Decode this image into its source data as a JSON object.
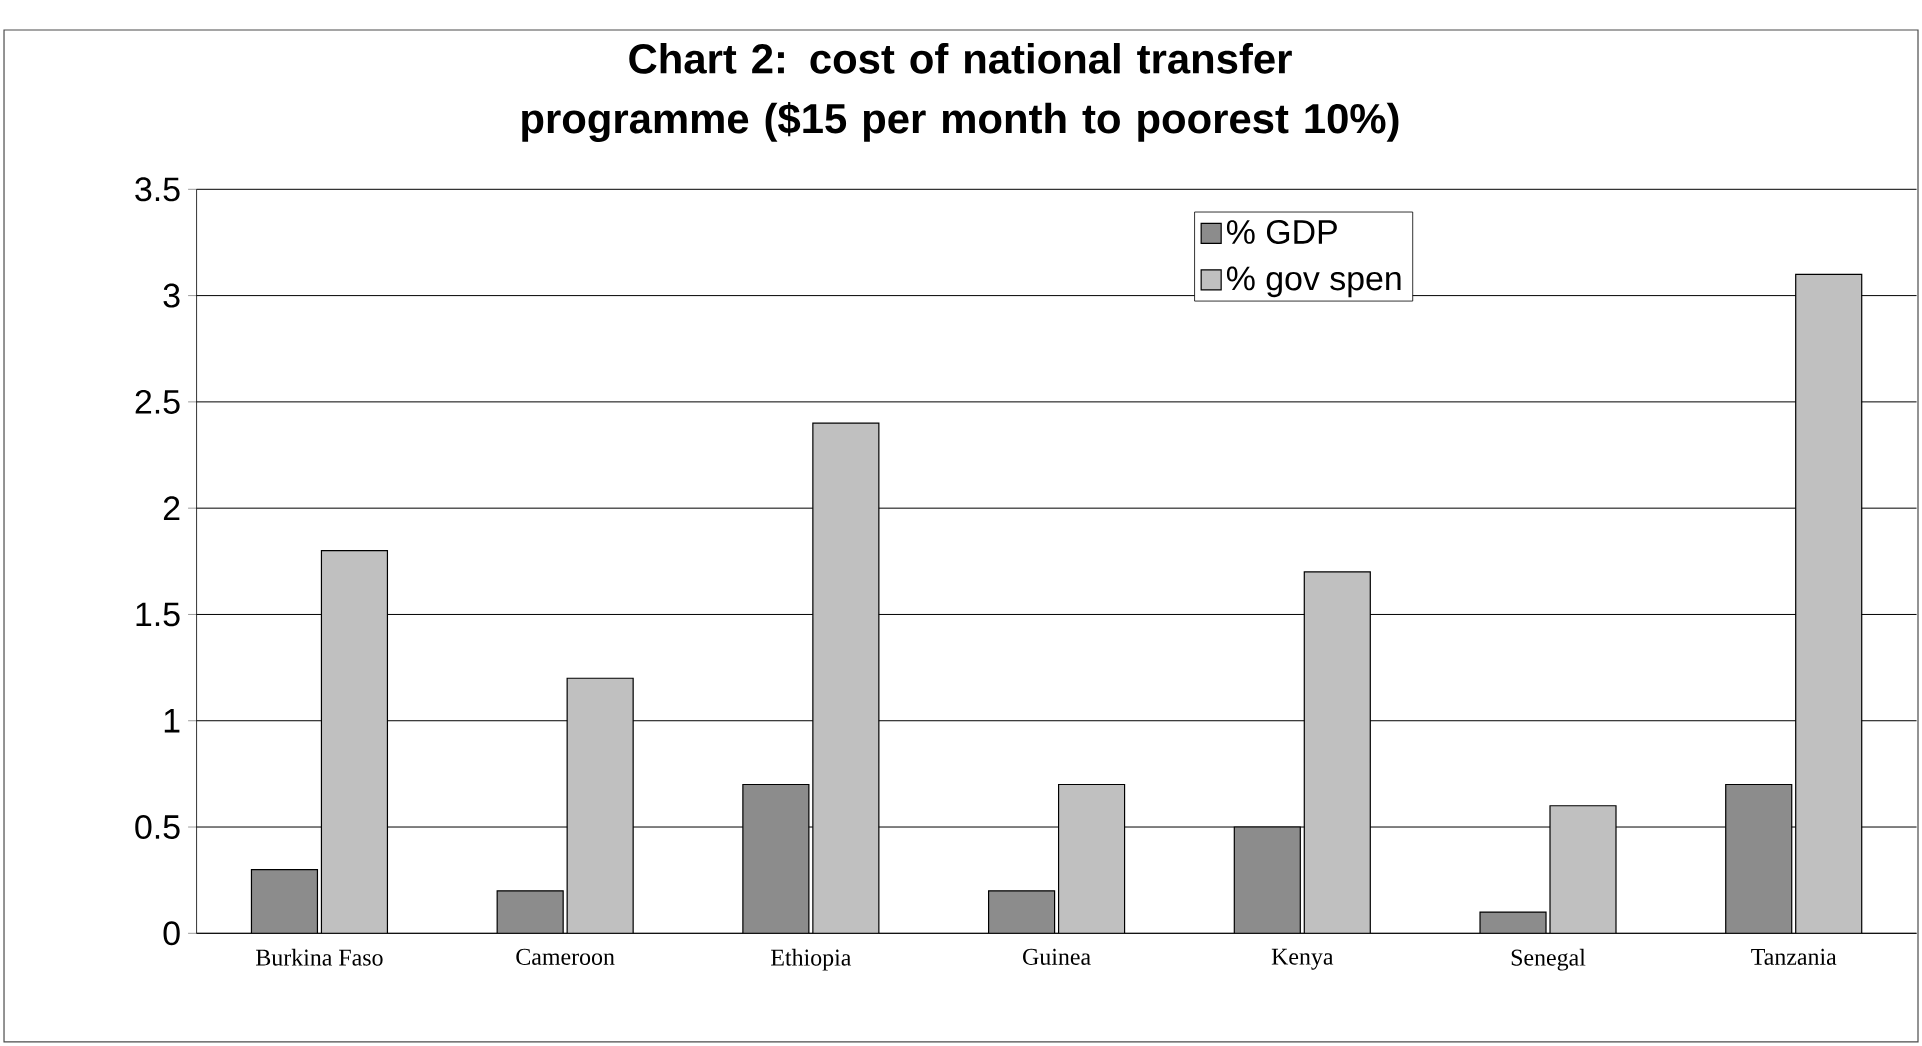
{
  "chart_data": {
    "type": "bar",
    "title": "Chart 2: cost of national transfer programme ($15 per month to poorest 10%)",
    "categories": [
      "Burkina Faso",
      "Cameroon",
      "Ethiopia",
      "Guinea",
      "Kenya",
      "Senegal",
      "Tanzania"
    ],
    "series": [
      {
        "name": "% GDP",
        "color": "#8c8c8c",
        "values": [
          0.3,
          0.2,
          0.7,
          0.2,
          0.5,
          0.1,
          0.7
        ]
      },
      {
        "name": "% gov spen",
        "color": "#c0c0c0",
        "values": [
          1.8,
          1.2,
          2.4,
          0.7,
          1.7,
          0.6,
          3.1
        ]
      }
    ],
    "ylim": [
      0,
      3.5
    ],
    "yticks": [
      0,
      0.5,
      1,
      1.5,
      2,
      2.5,
      3,
      3.5
    ],
    "grid": "y",
    "legend": "top right"
  }
}
